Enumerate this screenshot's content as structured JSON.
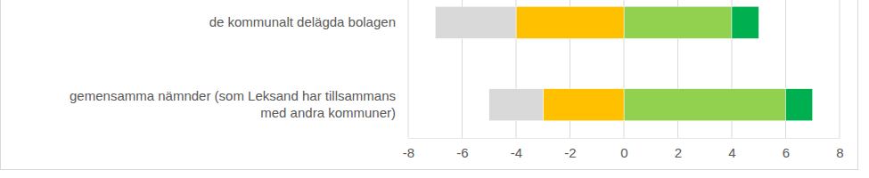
{
  "chart_data": {
    "type": "bar",
    "orientation": "horizontal",
    "stacked": true,
    "grid": true,
    "categories": [
      "de kommunalt delägda bolagen",
      "gemensamma nämnder (som Leksand har tillsammans med andra kommuner)"
    ],
    "series": [
      {
        "color": "#d9d9d9",
        "values": [
          -3,
          -2
        ]
      },
      {
        "color": "#ffc000",
        "values": [
          -4,
          -3
        ]
      },
      {
        "color": "#92d050",
        "values": [
          4,
          6
        ]
      },
      {
        "color": "#00b050",
        "values": [
          1,
          1
        ]
      }
    ],
    "xlim": [
      -8,
      8
    ],
    "xticks": [
      -8,
      -6,
      -4,
      -2,
      0,
      2,
      4,
      6,
      8
    ]
  }
}
